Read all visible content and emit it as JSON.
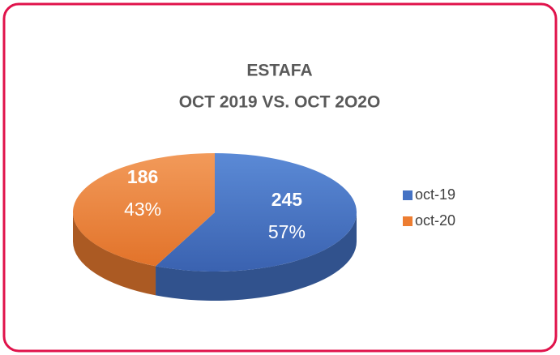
{
  "chart_data": {
    "type": "pie",
    "title": "ESTAFA",
    "subtitle": "OCT 2019 VS. OCT 2O2O",
    "categories": [
      "oct-19",
      "oct-20"
    ],
    "values": [
      245,
      186
    ],
    "shares": [
      57,
      43
    ],
    "share_labels": [
      "57%",
      "43%"
    ],
    "colors": [
      "#4472c4",
      "#ed7d31"
    ],
    "legend": "right"
  }
}
